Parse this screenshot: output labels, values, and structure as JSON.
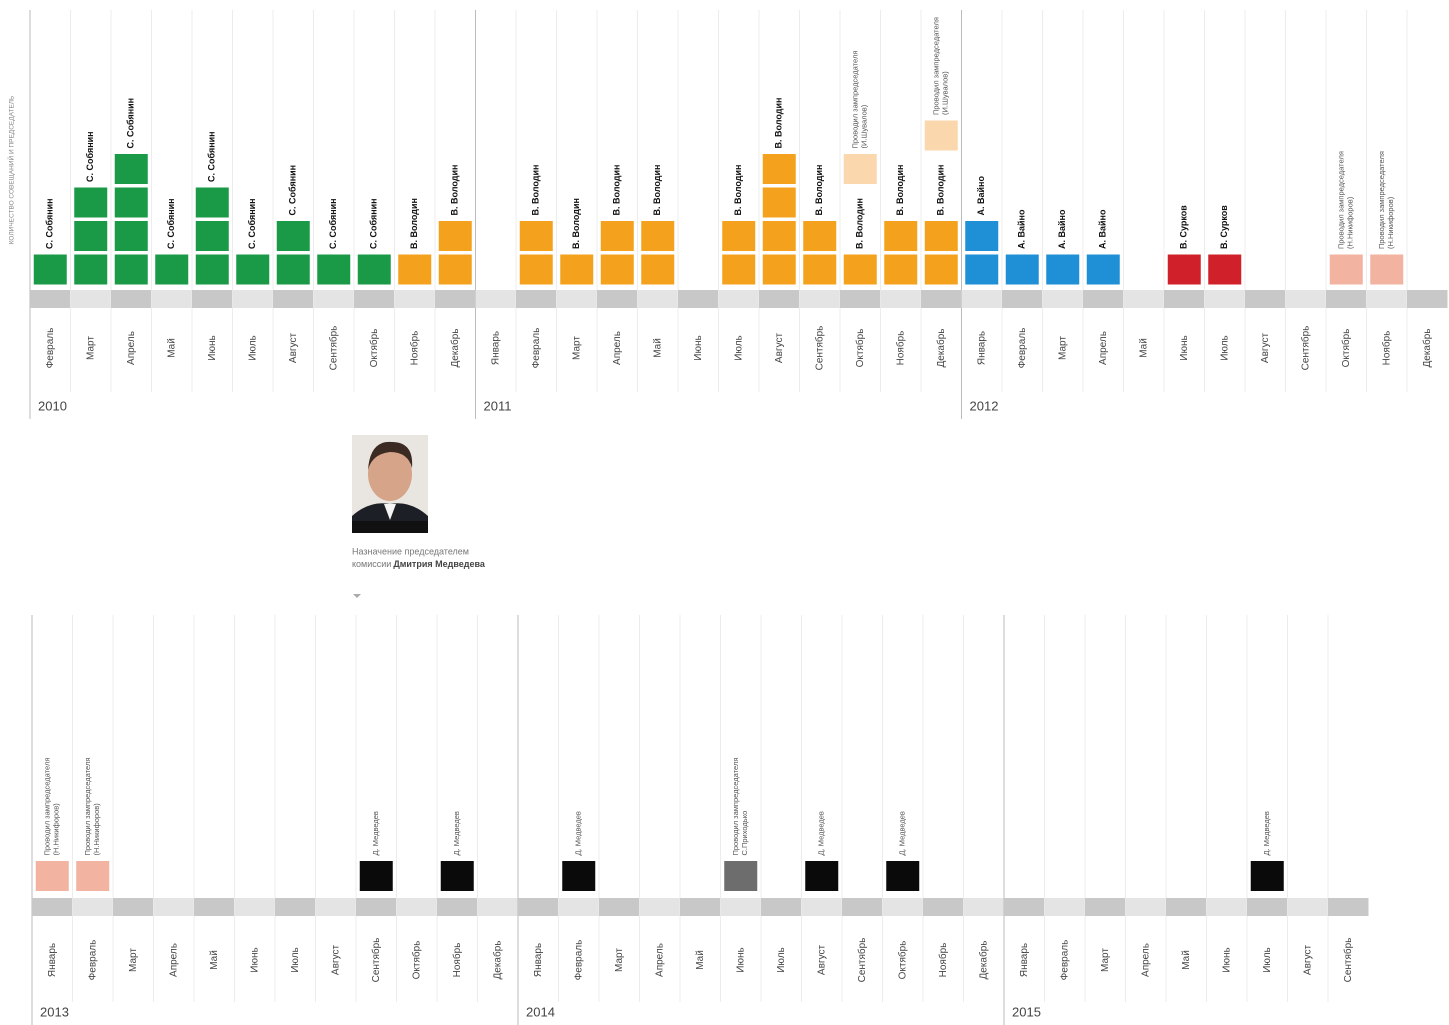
{
  "chart_data": [
    {
      "type": "bar",
      "axis_label": "КОЛИЧЕСТВО СОВЕЩАНИЙ И ПРЕДСЕДАТЕЛЬ",
      "groups": [
        {
          "year": "2010",
          "months": [
            {
              "name": "Февраль",
              "count": 1,
              "color": "#1a9a47",
              "label": "С. Собянин"
            },
            {
              "name": "Март",
              "count": 3,
              "color": "#1a9a47",
              "label": "С. Собянин"
            },
            {
              "name": "Апрель",
              "count": 4,
              "color": "#1a9a47",
              "label": "С. Собянин"
            },
            {
              "name": "Май",
              "count": 1,
              "color": "#1a9a47",
              "label": "С. Собянин"
            },
            {
              "name": "Июнь",
              "count": 3,
              "color": "#1a9a47",
              "label": "С. Собянин"
            },
            {
              "name": "Июль",
              "count": 1,
              "color": "#1a9a47",
              "label": "С. Собянин"
            },
            {
              "name": "Август",
              "count": 2,
              "color": "#1a9a47",
              "label": "С. Собянин"
            },
            {
              "name": "Сентябрь",
              "count": 1,
              "color": "#1a9a47",
              "label": "С. Собянин"
            },
            {
              "name": "Октябрь",
              "count": 1,
              "color": "#1a9a47",
              "label": "С. Собянин"
            },
            {
              "name": "Ноябрь",
              "count": 1,
              "color": "#f4a21d",
              "label": "В. Володин"
            },
            {
              "name": "Декабрь",
              "count": 2,
              "color": "#f4a21d",
              "label": "В. Володин"
            }
          ]
        },
        {
          "year": "2011",
          "months": [
            {
              "name": "Январь",
              "count": 0
            },
            {
              "name": "Февраль",
              "count": 2,
              "color": "#f4a21d",
              "label": "В. Володин"
            },
            {
              "name": "Март",
              "count": 1,
              "color": "#f4a21d",
              "label": "В. Володин"
            },
            {
              "name": "Апрель",
              "count": 2,
              "color": "#f4a21d",
              "label": "В. Володин"
            },
            {
              "name": "Май",
              "count": 2,
              "color": "#f4a21d",
              "label": "В. Володин"
            },
            {
              "name": "Июнь",
              "count": 0
            },
            {
              "name": "Июль",
              "count": 2,
              "color": "#f4a21d",
              "label": "В. Володин"
            },
            {
              "name": "Август",
              "count": 4,
              "color": "#f4a21d",
              "label": "В. Володин"
            },
            {
              "name": "Сентябрь",
              "count": 2,
              "color": "#f4a21d",
              "label": "В. Володин"
            },
            {
              "name": "Октябрь",
              "count": 1,
              "color": "#f4a21d",
              "label": "В. Володин",
              "deputy": {
                "count": 1,
                "color": "#fbd7ad",
                "label": [
                  "Проводил зампредседателя",
                  "(И.Шувалов)"
                ]
              }
            },
            {
              "name": "Ноябрь",
              "count": 2,
              "color": "#f4a21d",
              "label": "В. Володин"
            },
            {
              "name": "Декабрь",
              "count": 2,
              "color": "#f4a21d",
              "label": "В. Володин",
              "deputy": {
                "count": 1,
                "color": "#fbd7ad",
                "label": [
                  "Проводил зампредседателя",
                  "(И.Шувалов)"
                ]
              }
            }
          ]
        },
        {
          "year": "2012",
          "months": [
            {
              "name": "Январь",
              "count": 2,
              "color": "#1f8fd6",
              "label": "А. Вайно"
            },
            {
              "name": "Февраль",
              "count": 1,
              "color": "#1f8fd6",
              "label": "А. Вайно"
            },
            {
              "name": "Март",
              "count": 1,
              "color": "#1f8fd6",
              "label": "А. Вайно"
            },
            {
              "name": "Апрель",
              "count": 1,
              "color": "#1f8fd6",
              "label": "А. Вайно"
            },
            {
              "name": "Май",
              "count": 0
            },
            {
              "name": "Июнь",
              "count": 1,
              "color": "#d0202a",
              "label": "В. Сурков"
            },
            {
              "name": "Июль",
              "count": 1,
              "color": "#d0202a",
              "label": "В. Сурков"
            },
            {
              "name": "Август",
              "count": 0
            },
            {
              "name": "Сентябрь",
              "count": 0
            },
            {
              "name": "Октябрь",
              "count": 1,
              "color": "#f2b3a1",
              "label": [
                "Проводил зампредседателя",
                "(Н.Никифоров)"
              ]
            },
            {
              "name": "Ноябрь",
              "count": 1,
              "color": "#f2b3a1",
              "label": [
                "Проводил зампредседателя",
                "(Н.Никифоров)"
              ]
            },
            {
              "name": "Декабрь",
              "count": 0
            }
          ]
        }
      ]
    },
    {
      "type": "bar",
      "annotation": [
        "Назначение председателем",
        "комиссии",
        "Дмитрия Медведева"
      ],
      "groups": [
        {
          "year": "2013",
          "months": [
            {
              "name": "Январь",
              "count": 1,
              "color": "#f2b3a1",
              "label": [
                "Проводил зампредседателя",
                "(Н.Никифоров)"
              ]
            },
            {
              "name": "Февраль",
              "count": 1,
              "color": "#f2b3a1",
              "label": [
                "Проводил зампредседателя",
                "(Н.Никифоров)"
              ]
            },
            {
              "name": "Март",
              "count": 0
            },
            {
              "name": "Апрель",
              "count": 0
            },
            {
              "name": "Май",
              "count": 0
            },
            {
              "name": "Июнь",
              "count": 0
            },
            {
              "name": "Июль",
              "count": 0
            },
            {
              "name": "Август",
              "count": 0
            },
            {
              "name": "Сентябрь",
              "count": 1,
              "color": "#0a0a0a",
              "label": [
                "Д. Медведев"
              ]
            },
            {
              "name": "Октябрь",
              "count": 0
            },
            {
              "name": "Ноябрь",
              "count": 1,
              "color": "#0a0a0a",
              "label": [
                "Д. Медведев"
              ]
            },
            {
              "name": "Декабрь",
              "count": 0
            }
          ]
        },
        {
          "year": "2014",
          "months": [
            {
              "name": "Январь",
              "count": 0
            },
            {
              "name": "Февраль",
              "count": 1,
              "color": "#0a0a0a",
              "label": [
                "Д. Медведев"
              ]
            },
            {
              "name": "Март",
              "count": 0
            },
            {
              "name": "Апрель",
              "count": 0
            },
            {
              "name": "Май",
              "count": 0
            },
            {
              "name": "Июнь",
              "count": 1,
              "color": "#6d6d6d",
              "label": [
                "Проводил зампредседателя",
                "С.Приходько"
              ]
            },
            {
              "name": "Июль",
              "count": 0
            },
            {
              "name": "Август",
              "count": 1,
              "color": "#0a0a0a",
              "label": [
                "Д. Медведев"
              ]
            },
            {
              "name": "Сентябрь",
              "count": 0
            },
            {
              "name": "Октябрь",
              "count": 1,
              "color": "#0a0a0a",
              "label": [
                "Д. Медведев"
              ]
            },
            {
              "name": "Ноябрь",
              "count": 0
            },
            {
              "name": "Декабрь",
              "count": 0
            }
          ]
        },
        {
          "year": "2015",
          "months": [
            {
              "name": "Январь",
              "count": 0
            },
            {
              "name": "Февраль",
              "count": 0
            },
            {
              "name": "Март",
              "count": 0
            },
            {
              "name": "Апрель",
              "count": 0
            },
            {
              "name": "Май",
              "count": 0
            },
            {
              "name": "Июнь",
              "count": 0
            },
            {
              "name": "Июль",
              "count": 1,
              "color": "#0a0a0a",
              "label": [
                "Д. Медведев"
              ]
            },
            {
              "name": "Август",
              "count": 0
            },
            {
              "name": "Сентябрь",
              "count": 0
            }
          ]
        }
      ]
    }
  ]
}
